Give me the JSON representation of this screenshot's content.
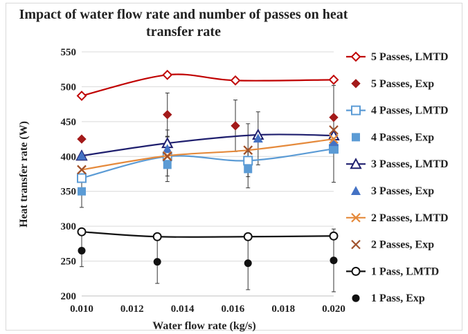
{
  "chart_data": {
    "type": "line",
    "title": "Impact of water flow rate and number of passes on  heat transfer rate",
    "title_lines": [
      "Impact of water flow rate and number of passes on  heat",
      "transfer rate"
    ],
    "xlabel": "Water flow rate (kg/s)",
    "ylabel": "Heat transfer rate (W)",
    "xlim": [
      0.01,
      0.02
    ],
    "ylim": [
      200,
      550
    ],
    "xticks": [
      "0.010",
      "0.012",
      "0.014",
      "0.016",
      "0.018",
      "0.020"
    ],
    "yticks": [
      "200",
      "250",
      "300",
      "350",
      "400",
      "450",
      "500",
      "550"
    ],
    "grid": "horizontal",
    "legend_position": "right",
    "series": [
      {
        "name": "5 Passes, LMTD",
        "kind": "line",
        "marker": "diamond-open",
        "color": "#c00000",
        "x": [
          0.01,
          0.0134,
          0.0161,
          0.02
        ],
        "y": [
          487,
          517,
          509,
          510
        ]
      },
      {
        "name": "5 Passes, Exp",
        "kind": "points",
        "marker": "diamond",
        "color": "#a31a1a",
        "x": [
          0.01,
          0.0134,
          0.0161,
          0.02
        ],
        "y": [
          425,
          460,
          444,
          456
        ],
        "err": [
          0,
          31,
          37,
          46
        ]
      },
      {
        "name": "4 Passes, LMTD",
        "kind": "line",
        "marker": "square-open",
        "color": "#5b9bd5",
        "x": [
          0.01,
          0.0134,
          0.0166,
          0.02
        ],
        "y": [
          369,
          400,
          394,
          411
        ]
      },
      {
        "name": "4 Passes, Exp",
        "kind": "points",
        "marker": "square",
        "color": "#5b9bd5",
        "x": [
          0.01,
          0.0134,
          0.0166,
          0.02
        ],
        "y": [
          350,
          388,
          382,
          410
        ],
        "err": [
          23,
          24,
          27,
          47
        ]
      },
      {
        "name": "3 Passes, LMTD",
        "kind": "line",
        "marker": "triangle-open",
        "color": "#1f1f6e",
        "x": [
          0.01,
          0.0134,
          0.017,
          0.02
        ],
        "y": [
          401,
          419,
          431,
          430
        ]
      },
      {
        "name": "3 Passes, Exp",
        "kind": "points",
        "marker": "triangle",
        "color": "#4472c4",
        "x": [
          0.01,
          0.0134,
          0.017,
          0.02
        ],
        "y": [
          401,
          411,
          426,
          421
        ],
        "err": [
          0,
          27,
          38,
          0
        ]
      },
      {
        "name": "2 Passes, LMTD",
        "kind": "line",
        "marker": "x",
        "color": "#e58a3c",
        "x": [
          0.01,
          0.0134,
          0.0166,
          0.02
        ],
        "y": [
          381,
          401,
          409,
          425
        ]
      },
      {
        "name": "2 Passes, Exp",
        "kind": "points",
        "marker": "x",
        "color": "#a0522d",
        "x": [
          0.01,
          0.0134,
          0.0166,
          0.02
        ],
        "y": [
          381,
          400,
          409,
          438
        ],
        "err": [
          0,
          28,
          38,
          0
        ]
      },
      {
        "name": "1 Pass, LMTD",
        "kind": "line",
        "marker": "circle-open",
        "color": "#111111",
        "x": [
          0.01,
          0.013,
          0.0166,
          0.02
        ],
        "y": [
          292,
          285,
          285,
          286
        ]
      },
      {
        "name": "1 Pass, Exp",
        "kind": "points",
        "marker": "circle",
        "color": "#111111",
        "x": [
          0.01,
          0.013,
          0.0166,
          0.02
        ],
        "y": [
          265,
          249,
          247,
          251
        ],
        "err": [
          23,
          31,
          38,
          45
        ]
      }
    ]
  }
}
